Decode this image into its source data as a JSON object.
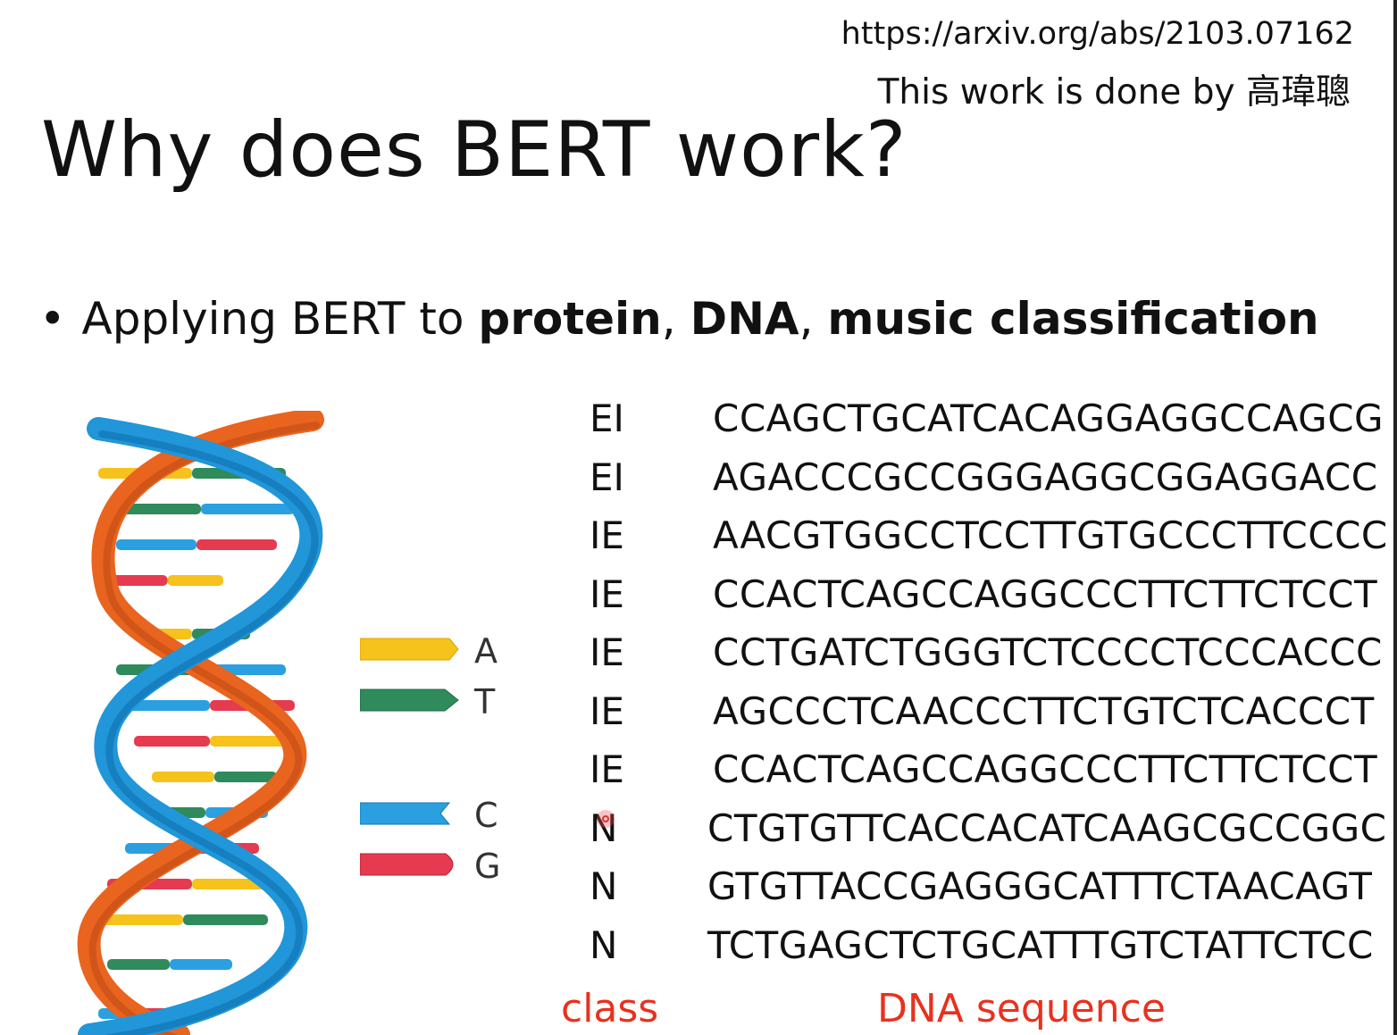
{
  "header": {
    "reference_url": "https://arxiv.org/abs/2103.07162",
    "credit": "This work is done by 高瑋聰"
  },
  "slide": {
    "title": "Why does BERT work?",
    "bullet": {
      "prefix": "Applying BERT to ",
      "items": [
        "protein",
        "DNA",
        "music classification"
      ],
      "sep1": ", ",
      "sep2": ", "
    }
  },
  "legend": [
    {
      "letter": "A",
      "color": "#f6c21c"
    },
    {
      "letter": "T",
      "color": "#2f8a5c"
    },
    {
      "letter": "C",
      "color": "#2aa0e0"
    },
    {
      "letter": "G",
      "color": "#e63a50"
    }
  ],
  "sequences": [
    {
      "class": "EI",
      "dna": "CCAGCTGCATCACAGGAGGCCAGCG"
    },
    {
      "class": "EI",
      "dna": "AGACCCGCCGGGAGGCGGAGGACC"
    },
    {
      "class": "IE",
      "dna": "AACGTGGCCTCCTTGTGCCCTTCCCC"
    },
    {
      "class": "IE",
      "dna": "CCACTCAGCCAGGCCCTTCTTCTCCT"
    },
    {
      "class": "IE",
      "dna": "CCTGATCTGGGTCTCCCCTCCCACCC"
    },
    {
      "class": "IE",
      "dna": "AGCCCTCAACCCTTCTGTCTCACCCT"
    },
    {
      "class": "IE",
      "dna": "CCACTCAGCCAGGCCCTTCTTCTCCT"
    },
    {
      "class": "N",
      "dna": "CTGTGTTCACCACATCAAGCGCCGGC"
    },
    {
      "class": "N",
      "dna": "GTGTTACCGAGGGCATTTCTAACAGT"
    },
    {
      "class": "N",
      "dna": "TCTGAGCTCTGCATTTGTCTATTCTCC"
    }
  ],
  "captions": {
    "class_label": "class",
    "sequence_label": "DNA sequence",
    "color": "#e8311d"
  }
}
